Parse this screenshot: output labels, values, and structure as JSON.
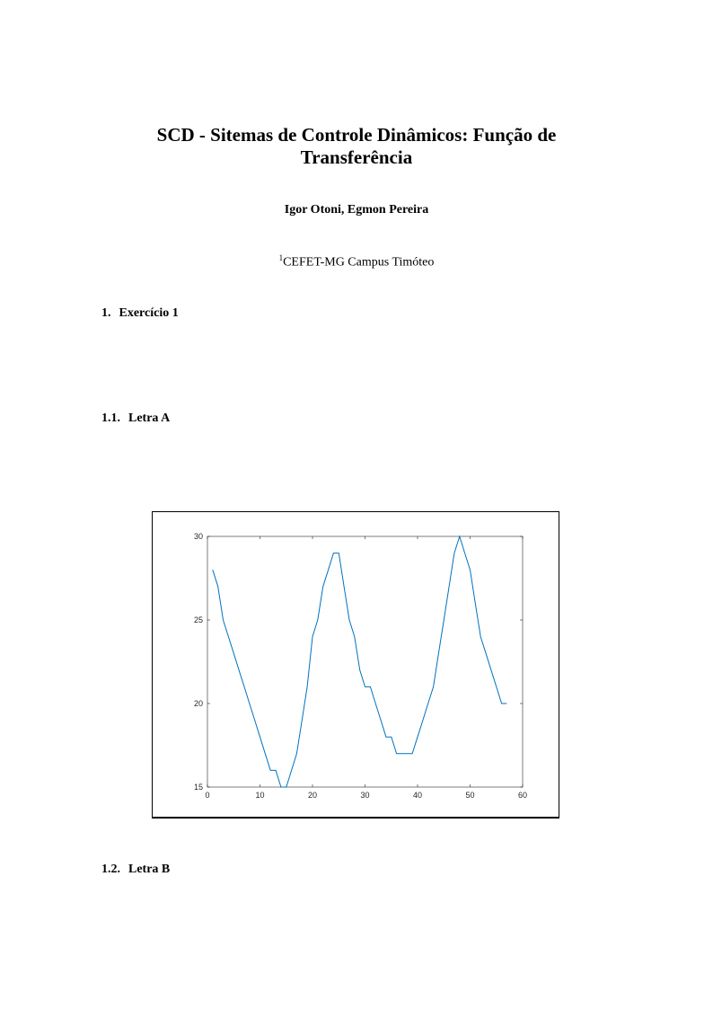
{
  "title_line1": "SCD - Sitemas de Controle Dinâmicos: Função de",
  "title_line2": "Transferência",
  "authors": "Igor Otoni, Egmon Pereira",
  "affiliation_mark": "1",
  "affiliation": "CEFET-MG Campus Timóteo",
  "sections": [
    {
      "number": "1.",
      "title": "Exercício 1"
    },
    {
      "number": "1.1.",
      "title": "Letra A"
    },
    {
      "number": "1.2.",
      "title": "Letra B"
    }
  ],
  "chart_data": {
    "type": "line",
    "title": "",
    "xlabel": "",
    "ylabel": "",
    "xlim": [
      0,
      60
    ],
    "ylim": [
      15,
      30
    ],
    "xticks": [
      0,
      10,
      20,
      30,
      40,
      50,
      60
    ],
    "yticks": [
      15,
      20,
      25,
      30
    ],
    "grid": false,
    "line_color": "#0072BD",
    "x": [
      1,
      2,
      3,
      4,
      5,
      6,
      7,
      8,
      9,
      10,
      11,
      12,
      13,
      14,
      15,
      16,
      17,
      18,
      19,
      20,
      21,
      22,
      23,
      24,
      25,
      26,
      27,
      28,
      29,
      30,
      31,
      32,
      33,
      34,
      35,
      36,
      37,
      38,
      39,
      40,
      41,
      42,
      43,
      44,
      45,
      46,
      47,
      48,
      49,
      50,
      51,
      52,
      53,
      54,
      55,
      56,
      57
    ],
    "y": [
      28,
      27,
      25,
      24,
      23,
      22,
      21,
      20,
      19,
      18,
      17,
      16,
      16,
      15,
      15,
      16,
      17,
      19,
      21,
      24,
      25,
      27,
      28,
      29,
      29,
      27,
      25,
      24,
      22,
      21,
      21,
      20,
      19,
      18,
      18,
      17,
      17,
      17,
      17,
      18,
      19,
      20,
      21,
      23,
      25,
      27,
      29,
      30,
      29,
      28,
      26,
      24,
      23,
      22,
      21,
      20,
      20
    ]
  }
}
